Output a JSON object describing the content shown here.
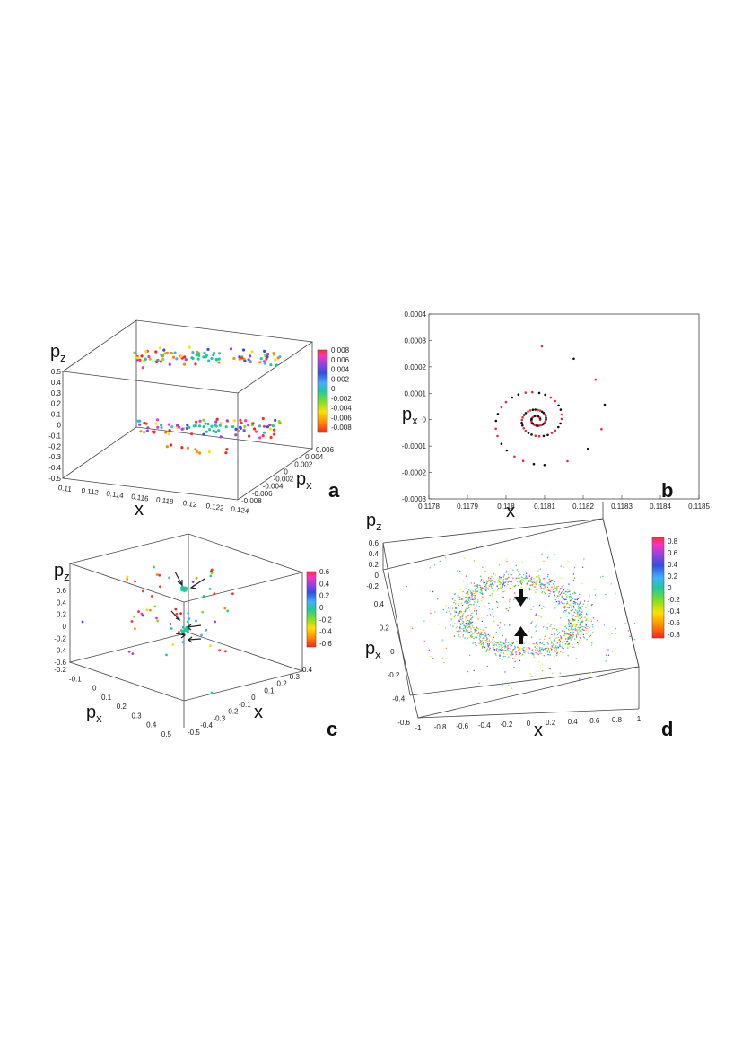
{
  "colors": {
    "colorbar": [
      "#ff2020",
      "#ff8800",
      "#ffe000",
      "#80e020",
      "#20c8a0",
      "#40b0ff",
      "#3050e0",
      "#a040e0",
      "#ff30c0",
      "#ff3030"
    ],
    "panel_b_series": [
      "#e03040",
      "#111111"
    ],
    "axis": "#444444"
  },
  "chart_data": [
    {
      "panel": "a",
      "type": "scatter",
      "xlabel": "x",
      "ylabel": "p",
      "ylabel_sub": "z",
      "zlabel": "p",
      "zlabel_sub": "x",
      "x_ticks": [
        "0.11",
        "0.112",
        "0.114",
        "0.116",
        "0.118",
        "0.12",
        "0.122",
        "0.124"
      ],
      "y_ticks": [
        "0.5",
        "0.4",
        "0.3",
        "0.2",
        "0.1",
        "0",
        "-0.1",
        "-0.2",
        "-0.3",
        "-0.4",
        "-0.5"
      ],
      "z_ticks": [
        "0.006",
        "0.004",
        "0.002",
        "0",
        "-0.002",
        "-0.004",
        "-0.006",
        "-0.008"
      ],
      "colorbar_ticks": [
        "0.008",
        "0.006",
        "0.004",
        "0.002",
        "0",
        "-0.002",
        "-0.004",
        "-0.006",
        "-0.008"
      ],
      "xlim": [
        0.11,
        0.124
      ],
      "ylim": [
        -0.5,
        0.5
      ],
      "zlim": [
        -0.008,
        0.006
      ],
      "clim": [
        -0.008,
        0.008
      ]
    },
    {
      "panel": "b",
      "type": "scatter",
      "xlabel": "x",
      "ylabel": "p",
      "ylabel_sub": "x",
      "x_ticks": [
        "0.1178",
        "0.1179",
        "0.118",
        "0.1181",
        "0.1182",
        "0.1183",
        "0.1184",
        "0.1185"
      ],
      "y_ticks": [
        "0.0004",
        "0.0003",
        "0.0002",
        "0.0001",
        "0",
        "-0.0001",
        "-0.0002",
        "-0.0003"
      ],
      "xlim": [
        0.1178,
        0.1185
      ],
      "ylim": [
        -0.0003,
        0.0004
      ],
      "center": [
        0.11808,
        0.0
      ]
    },
    {
      "panel": "c",
      "type": "scatter",
      "xlabel": "x",
      "ylabel": "p",
      "ylabel_sub": "z",
      "zlabel": "p",
      "zlabel_sub": "x",
      "y_ticks": [
        "0.6",
        "0.4",
        "0.2",
        "0",
        "-0.2",
        "-0.4",
        "-0.6"
      ],
      "px_ticks": [
        "-0.2",
        "-0.1",
        "0",
        "0.1",
        "0.2",
        "0.3",
        "0.4",
        "0.5"
      ],
      "x_ticks": [
        "-0.5",
        "-0.4",
        "-0.3",
        "-0.2",
        "-0.1",
        "0",
        "0.1",
        "0.2",
        "0.3",
        "0.4"
      ],
      "colorbar_ticks": [
        "0.6",
        "0.4",
        "0.2",
        "0",
        "-0.2",
        "-0.4",
        "-0.6"
      ],
      "clim": [
        -0.6,
        0.6
      ]
    },
    {
      "panel": "d",
      "type": "scatter",
      "xlabel": "x",
      "ylabel": "p",
      "ylabel_sub": "x",
      "zlabel": "p",
      "zlabel_sub": "z",
      "x_ticks": [
        "-1",
        "-0.8",
        "-0.6",
        "-0.4",
        "-0.2",
        "0",
        "0.2",
        "0.4",
        "0.6",
        "0.8",
        "1"
      ],
      "y_ticks": [
        "0.4",
        "0.2",
        "0",
        "-0.2",
        "-0.4",
        "-0.6"
      ],
      "z_ticks": [
        "0.6",
        "0.4",
        "0.2",
        "0",
        "-0.2"
      ],
      "colorbar_ticks": [
        "0.8",
        "0.6",
        "0.4",
        "0.2",
        "0",
        "-0.2",
        "-0.4",
        "-0.6",
        "-0.8"
      ],
      "clim": [
        -0.8,
        0.8
      ]
    }
  ]
}
